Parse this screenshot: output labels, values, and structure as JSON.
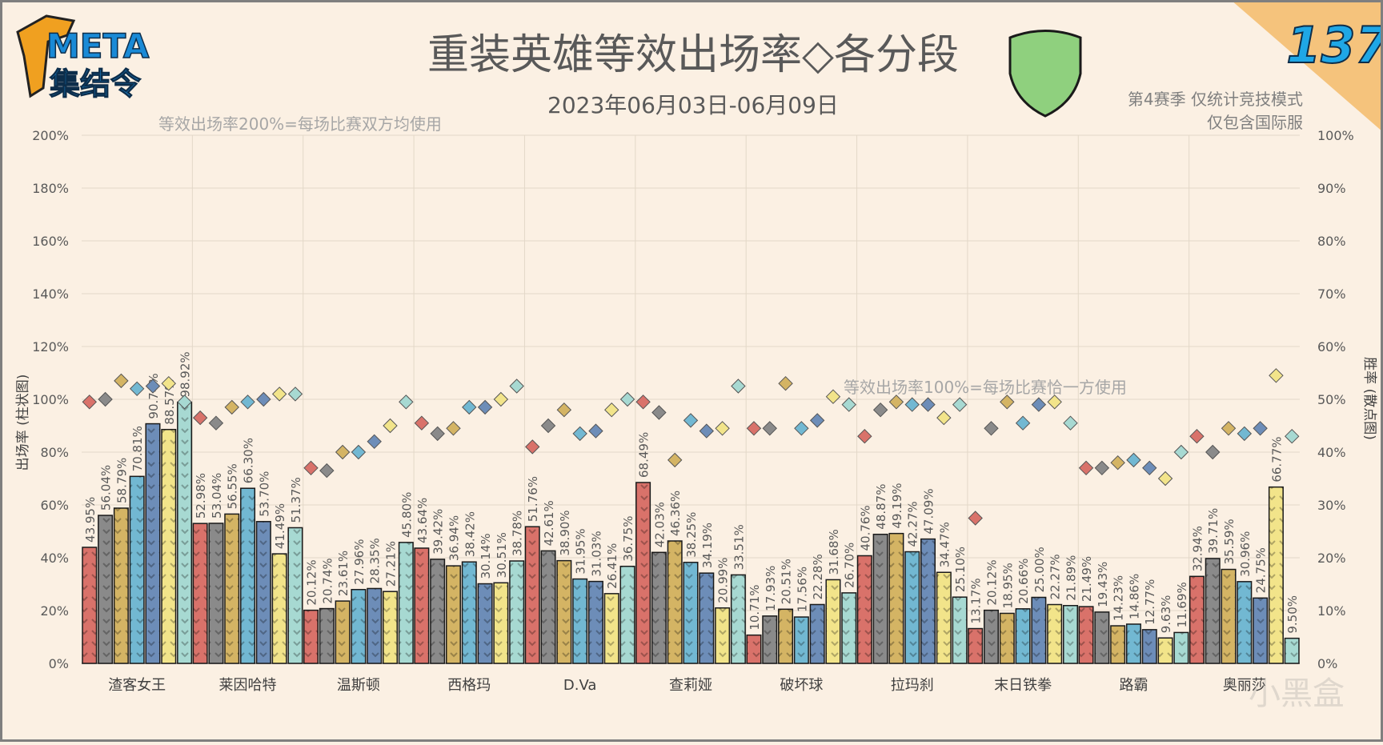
{
  "header": {
    "logo_text": "META",
    "logo_subtext": "集结令",
    "title": "重装英雄等效出场率◇各分段",
    "date_range": "2023年06月03日-06月09日",
    "season_note": "第4赛季 仅统计竞技模式",
    "server_note": "仅包含国际服",
    "issue_number": "137",
    "shield_color": "#8fd07e"
  },
  "annotations": {
    "note_200": "等效出场率200%=每场比赛双方均使用",
    "note_100": "等效出场率100%=每场比赛恰一方使用"
  },
  "watermark": "小黑盒",
  "chart_data": {
    "type": "bar",
    "categories": [
      "渣客女王",
      "莱因哈特",
      "温斯顿",
      "西格玛",
      "D.Va",
      "查莉娅",
      "破坏球",
      "拉玛刹",
      "末日铁拳",
      "路霸",
      "奥丽莎"
    ],
    "ylabel": "出场率 (柱状图)",
    "y2label": "胜率 (散点图)",
    "ylim": [
      0,
      200
    ],
    "y2lim": [
      0,
      100
    ],
    "yticks": [
      "0%",
      "20%",
      "40%",
      "60%",
      "80%",
      "100%",
      "120%",
      "140%",
      "160%",
      "180%",
      "200%"
    ],
    "y2ticks": [
      "0%",
      "10%",
      "20%",
      "30%",
      "40%",
      "50%",
      "60%",
      "70%",
      "80%",
      "90%",
      "100%"
    ],
    "grid": true,
    "series": [
      {
        "color": "#d9726a",
        "values": [
          43.95,
          52.98,
          20.12,
          43.64,
          51.76,
          68.49,
          10.71,
          40.76,
          13.17,
          21.49,
          32.94
        ],
        "labels": [
          "43.95%",
          "52.98%",
          "20.12%",
          "43.64%",
          "51.76%",
          "68.49%",
          "10.71%",
          "40.76%",
          "13.17%",
          "21.49%",
          "32.94%"
        ],
        "winrate": [
          49.5,
          46.5,
          37.0,
          45.5,
          41.0,
          49.5,
          44.5,
          43.0,
          27.5,
          37.0,
          43.0
        ]
      },
      {
        "color": "#8a8a8a",
        "values": [
          56.04,
          53.04,
          20.74,
          39.42,
          42.61,
          42.03,
          17.93,
          48.87,
          20.12,
          19.43,
          39.71
        ],
        "labels": [
          "56.04%",
          "53.04%",
          "20.74%",
          "39.42%",
          "42.61%",
          "42.03%",
          "17.93%",
          "48.87%",
          "20.12%",
          "19.43%",
          "39.71%"
        ],
        "winrate": [
          50.0,
          45.5,
          36.5,
          43.5,
          45.0,
          47.5,
          44.5,
          48.0,
          44.5,
          37.0,
          40.0
        ]
      },
      {
        "color": "#d4b464",
        "values": [
          58.79,
          56.55,
          23.61,
          36.94,
          38.9,
          46.36,
          20.51,
          49.19,
          18.95,
          14.23,
          35.59
        ],
        "labels": [
          "58.79%",
          "56.55%",
          "23.61%",
          "36.94%",
          "38.90%",
          "46.36%",
          "20.51%",
          "49.19%",
          "18.95%",
          "14.23%",
          "35.59%"
        ],
        "winrate": [
          53.5,
          48.5,
          40.0,
          44.5,
          48.0,
          38.5,
          53.0,
          49.5,
          49.5,
          38.0,
          44.5
        ]
      },
      {
        "color": "#72b8d2",
        "values": [
          70.81,
          66.3,
          27.96,
          38.42,
          31.95,
          38.25,
          17.56,
          42.27,
          20.66,
          14.86,
          30.96
        ],
        "labels": [
          "70.81%",
          "66.30%",
          "27.96%",
          "38.42%",
          "31.95%",
          "38.25%",
          "17.56%",
          "42.27%",
          "20.66%",
          "14.86%",
          "30.96%"
        ],
        "winrate": [
          52.0,
          49.5,
          40.0,
          48.5,
          43.5,
          46.0,
          44.5,
          49.0,
          45.5,
          38.5,
          43.5
        ]
      },
      {
        "color": "#6d8db8",
        "values": [
          90.74,
          53.7,
          28.35,
          30.14,
          31.03,
          34.19,
          22.28,
          47.09,
          25.0,
          12.77,
          24.75
        ],
        "labels": [
          "90.74%",
          "53.70%",
          "28.35%",
          "30.14%",
          "31.03%",
          "34.19%",
          "22.28%",
          "47.09%",
          "25.00%",
          "12.77%",
          "24.75%"
        ],
        "winrate": [
          52.5,
          50.0,
          42.0,
          48.5,
          44.0,
          44.0,
          46.0,
          49.0,
          49.0,
          37.0,
          44.5
        ]
      },
      {
        "color": "#f2e48a",
        "values": [
          88.57,
          41.49,
          27.21,
          30.51,
          26.41,
          20.99,
          31.68,
          34.47,
          22.27,
          9.63,
          66.77
        ],
        "labels": [
          "88.57%",
          "41.49%",
          "27.21%",
          "30.51%",
          "26.41%",
          "20.99%",
          "31.68%",
          "34.47%",
          "22.27%",
          "9.63%",
          "66.77%"
        ],
        "winrate": [
          53.0,
          51.0,
          45.0,
          50.0,
          48.0,
          44.5,
          50.5,
          46.5,
          49.5,
          35.0,
          54.5
        ]
      },
      {
        "color": "#a7d9d2",
        "values": [
          98.92,
          51.37,
          45.8,
          38.78,
          36.75,
          33.51,
          26.7,
          25.1,
          21.89,
          11.69,
          9.5
        ],
        "labels": [
          "98.92%",
          "51.37%",
          "45.80%",
          "38.78%",
          "36.75%",
          "33.51%",
          "26.70%",
          "25.10%",
          "21.89%",
          "11.69%",
          "9.50%"
        ],
        "winrate": [
          49.5,
          51.0,
          49.5,
          52.5,
          50.0,
          52.5,
          49.0,
          49.0,
          45.5,
          40.0,
          43.0
        ]
      }
    ]
  }
}
